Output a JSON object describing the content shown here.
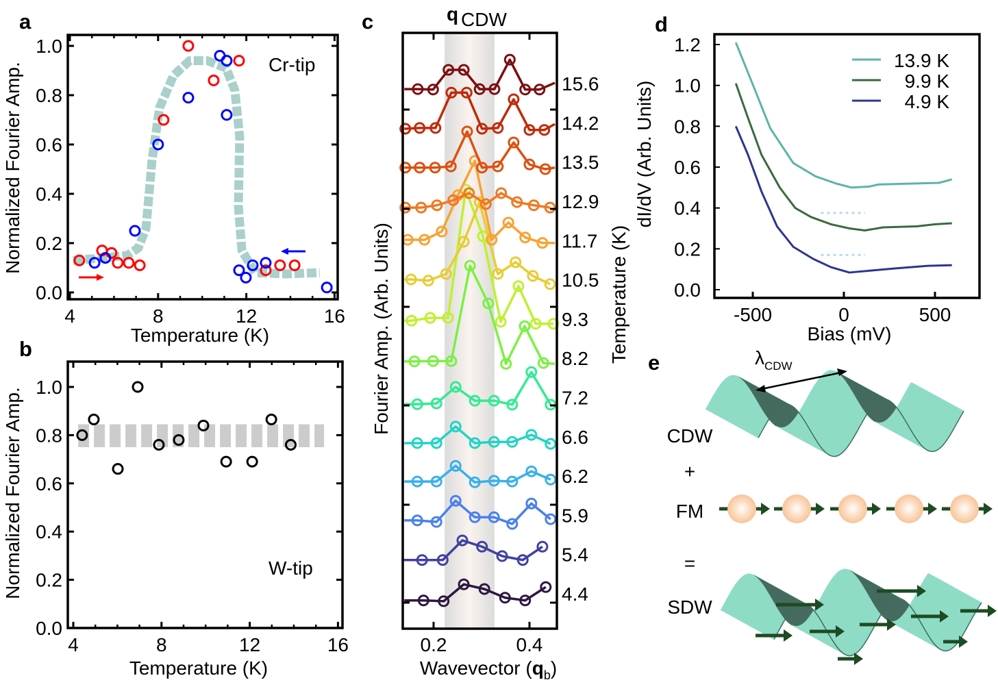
{
  "panel_labels": [
    "a",
    "b",
    "c",
    "d",
    "e"
  ],
  "chart_data": [
    {
      "panel": "a",
      "type": "scatter",
      "xlabel": "Temperature (K)",
      "ylabel": "Normalized Fourier Amp.",
      "xlim": [
        3.9,
        16.15
      ],
      "ylim": [
        -0.03,
        1.045
      ],
      "xticks": [
        4,
        8,
        12,
        16
      ],
      "xtick_labels": [
        "4",
        "8",
        "12",
        "16"
      ],
      "yticks": [
        0,
        0.2,
        0.4,
        0.6,
        0.8,
        1.0
      ],
      "ytick_labels": [
        "0.0",
        "0.2",
        "0.4",
        "0.6",
        "0.8",
        "1.0"
      ],
      "annotation": "Cr-tip",
      "grid": false,
      "series": [
        {
          "color": "#ff0000",
          "marker": "open-circle",
          "arrow": "right",
          "points": [
            [
              4.43,
              0.13
            ],
            [
              5.46,
              0.17
            ],
            [
              5.89,
              0.16
            ],
            [
              6.17,
              0.12
            ],
            [
              6.67,
              0.12
            ],
            [
              7.17,
              0.11
            ],
            [
              8.25,
              0.7
            ],
            [
              9.37,
              1.0
            ],
            [
              10.52,
              0.86
            ],
            [
              11.67,
              0.94
            ],
            [
              12.88,
              0.09
            ],
            [
              13.53,
              0.11
            ],
            [
              14.19,
              0.11
            ]
          ]
        },
        {
          "color": "#0000ff",
          "marker": "open-circle",
          "arrow": "left",
          "points": [
            [
              5.12,
              0.12
            ],
            [
              5.61,
              0.14
            ],
            [
              6.95,
              0.25
            ],
            [
              8.0,
              0.6
            ],
            [
              9.37,
              0.79
            ],
            [
              10.8,
              0.96
            ],
            [
              11.11,
              0.94
            ],
            [
              11.11,
              0.72
            ],
            [
              11.67,
              0.09
            ],
            [
              11.98,
              0.06
            ],
            [
              12.29,
              0.11
            ],
            [
              12.88,
              0.12
            ],
            [
              15.65,
              0.02
            ]
          ]
        }
      ],
      "guide_curve": {
        "color": "#a9d0ca",
        "style": "dashed",
        "points": [
          [
            4.15,
            0.13
          ],
          [
            5.5,
            0.14
          ],
          [
            6.6,
            0.15
          ],
          [
            7.1,
            0.18
          ],
          [
            7.45,
            0.26
          ],
          [
            7.73,
            0.54
          ],
          [
            8.07,
            0.75
          ],
          [
            8.7,
            0.88
          ],
          [
            9.43,
            0.94
          ],
          [
            10.24,
            0.94
          ],
          [
            11.08,
            0.91
          ],
          [
            11.48,
            0.82
          ],
          [
            11.7,
            0.63
          ],
          [
            11.64,
            0.35
          ],
          [
            11.8,
            0.17
          ],
          [
            12.4,
            0.08
          ],
          [
            13.78,
            0.075
          ],
          [
            15.33,
            0.08
          ]
        ]
      }
    },
    {
      "panel": "b",
      "type": "scatter",
      "xlabel": "Temperature (K)",
      "ylabel": "Normalized Fourier Amp.",
      "xlim": [
        3.75,
        16.2
      ],
      "ylim": [
        0,
        1.105
      ],
      "xticks": [
        4,
        8,
        12,
        16
      ],
      "xtick_labels": [
        "4",
        "8",
        "12",
        "16"
      ],
      "yticks": [
        0,
        0.2,
        0.4,
        0.6,
        0.8,
        1.0
      ],
      "ytick_labels": [
        "0.0",
        "0.2",
        "0.4",
        "0.6",
        "0.8",
        "1.0"
      ],
      "annotation": "W-tip",
      "grid": false,
      "series": [
        {
          "color": "#000000",
          "marker": "open-circle",
          "points": [
            [
              4.4,
              0.8
            ],
            [
              4.93,
              0.865
            ],
            [
              6.02,
              0.66
            ],
            [
              6.92,
              1.0
            ],
            [
              7.88,
              0.76
            ],
            [
              8.78,
              0.78
            ],
            [
              9.9,
              0.84
            ],
            [
              10.93,
              0.69
            ],
            [
              12.11,
              0.69
            ],
            [
              12.98,
              0.865
            ],
            [
              13.86,
              0.76
            ]
          ]
        }
      ],
      "band": {
        "color": "#cccccc",
        "style": "dashed",
        "x_range": [
          4.22,
          15.37
        ],
        "y_range": [
          0.75,
          0.845
        ]
      }
    },
    {
      "panel": "c",
      "type": "line",
      "title_symbol": "q",
      "title_subscript": "CDW",
      "xlabel_prefix": "Wavevector (",
      "xlabel_symbol": "q",
      "xlabel_subscript": "b",
      "xlabel_suffix": ")",
      "ylabel": "Fourier Amp. (Arb. Units)",
      "ylabel_right": "Temperature (K)",
      "xlim": [
        0.136,
        0.457
      ],
      "ylim": [
        0,
        15.2
      ],
      "xticks": [
        0.2,
        0.4
      ],
      "xtick_labels": [
        "0.2",
        "0.4"
      ],
      "grid": false,
      "highlight_band": {
        "x_range": [
          0.223,
          0.327
        ],
        "color": "#dcdcdc",
        "center_color": "#faf3ee"
      },
      "traces": [
        {
          "temperature": "4.4",
          "color": "#2d1840",
          "q": [
            0.139,
            0.179,
            0.221,
            0.263,
            0.306,
            0.349,
            0.391,
            0.434
          ],
          "amp": [
            0.72,
            0.72,
            0.7,
            1.13,
            1.01,
            0.79,
            0.72,
            1.06
          ]
        },
        {
          "temperature": "5.4",
          "color": "#3f41a0",
          "q": [
            0.136,
            0.176,
            0.219,
            0.26,
            0.301,
            0.343,
            0.386,
            0.427
          ],
          "amp": [
            1.75,
            1.75,
            1.75,
            2.25,
            2.09,
            1.85,
            1.75,
            2.09
          ]
        },
        {
          "temperature": "5.9",
          "color": "#4a80ec",
          "q": [
            0.139,
            0.166,
            0.206,
            0.246,
            0.286,
            0.326,
            0.364,
            0.404,
            0.444
          ],
          "amp": [
            2.76,
            2.76,
            2.72,
            3.26,
            2.84,
            2.84,
            2.67,
            3.19,
            2.79
          ]
        },
        {
          "temperature": "6.2",
          "color": "#38b0ea",
          "q": [
            0.139,
            0.166,
            0.206,
            0.246,
            0.286,
            0.326,
            0.364,
            0.404,
            0.444
          ],
          "amp": [
            3.75,
            3.75,
            3.75,
            4.15,
            3.73,
            3.77,
            3.75,
            4.01,
            3.8
          ]
        },
        {
          "temperature": "6.6",
          "color": "#22d4c4",
          "q": [
            0.139,
            0.166,
            0.206,
            0.246,
            0.286,
            0.326,
            0.364,
            0.404,
            0.444
          ],
          "amp": [
            4.73,
            4.73,
            4.73,
            5.15,
            4.73,
            4.76,
            4.76,
            4.94,
            4.71
          ]
        },
        {
          "temperature": "7.2",
          "color": "#34ea94",
          "q": [
            0.139,
            0.166,
            0.206,
            0.246,
            0.286,
            0.326,
            0.364,
            0.404,
            0.444
          ],
          "amp": [
            5.72,
            5.72,
            5.74,
            6.16,
            5.81,
            5.81,
            5.71,
            6.54,
            5.71
          ]
        },
        {
          "temperature": "8.2",
          "color": "#7cf044",
          "q": [
            0.139,
            0.16,
            0.199,
            0.237,
            0.276,
            0.314,
            0.351,
            0.39,
            0.429,
            0.453
          ],
          "amp": [
            6.81,
            6.81,
            6.82,
            6.82,
            9.25,
            8.29,
            6.75,
            7.71,
            6.77,
            6.75
          ]
        },
        {
          "temperature": "9.3",
          "color": "#c0f030",
          "q": [
            0.139,
            0.154,
            0.193,
            0.23,
            0.267,
            0.303,
            0.34,
            0.377,
            0.413,
            0.45
          ],
          "amp": [
            7.85,
            7.85,
            7.92,
            7.92,
            11.19,
            10.0,
            7.82,
            8.73,
            7.77,
            7.77
          ]
        },
        {
          "temperature": "10.5",
          "color": "#e8cc34",
          "q": [
            0.139,
            0.153,
            0.189,
            0.226,
            0.263,
            0.296,
            0.334,
            0.371,
            0.407,
            0.443
          ],
          "amp": [
            8.9,
            8.9,
            8.87,
            9.04,
            9.86,
            10.87,
            9.04,
            9.34,
            8.99,
            8.78
          ]
        },
        {
          "temperature": "11.7",
          "color": "#f8a232",
          "q": [
            0.139,
            0.146,
            0.181,
            0.217,
            0.251,
            0.286,
            0.321,
            0.356,
            0.391,
            0.427,
            0.453
          ],
          "amp": [
            9.91,
            9.91,
            9.91,
            10.12,
            11.05,
            11.92,
            9.91,
            10.35,
            9.97,
            9.83,
            9.83
          ]
        },
        {
          "temperature": "12.9",
          "color": "#f07822",
          "q": [
            0.139,
            0.141,
            0.174,
            0.207,
            0.241,
            0.274,
            0.309,
            0.341,
            0.374,
            0.409,
            0.443
          ],
          "amp": [
            10.73,
            10.73,
            10.73,
            10.79,
            10.92,
            11.1,
            10.82,
            11.1,
            10.87,
            10.79,
            10.73
          ]
        },
        {
          "temperature": "13.5",
          "color": "#de5010",
          "q": [
            0.139,
            0.141,
            0.171,
            0.203,
            0.236,
            0.27,
            0.301,
            0.334,
            0.367,
            0.4,
            0.433,
            0.453
          ],
          "amp": [
            11.75,
            11.75,
            11.75,
            11.75,
            11.78,
            12.67,
            11.75,
            11.78,
            12.39,
            11.83,
            11.71,
            11.75
          ]
        },
        {
          "temperature": "14.2",
          "color": "#c02a0a",
          "q": [
            0.139,
            0.141,
            0.171,
            0.204,
            0.237,
            0.269,
            0.301,
            0.334,
            0.367,
            0.4,
            0.431,
            0.453
          ],
          "amp": [
            12.74,
            12.74,
            12.76,
            12.76,
            13.66,
            13.66,
            12.74,
            12.76,
            13.49,
            12.71,
            12.71,
            12.86
          ]
        },
        {
          "temperature": "15.6",
          "color": "#7c0f10",
          "q": [
            0.139,
            0.167,
            0.199,
            0.231,
            0.263,
            0.296,
            0.327,
            0.359,
            0.391,
            0.421,
            0.453
          ],
          "amp": [
            13.75,
            13.75,
            13.74,
            14.24,
            14.24,
            13.75,
            13.75,
            14.5,
            13.74,
            13.74,
            13.91
          ]
        }
      ]
    },
    {
      "panel": "d",
      "type": "line",
      "xlabel": "Bias (mV)",
      "ylabel": "dI/dV (Arb. Units)",
      "xlim": [
        -710,
        744
      ],
      "ylim": [
        -0.04,
        1.25
      ],
      "xticks": [
        -500,
        0,
        500
      ],
      "xtick_labels": [
        "-500",
        "0",
        "500"
      ],
      "yticks": [
        0,
        0.2,
        0.4,
        0.6,
        0.8,
        1.0,
        1.2
      ],
      "ytick_labels": [
        "0.0",
        "0.2",
        "0.4",
        "0.6",
        "0.8",
        "1.0",
        "1.2"
      ],
      "legend_position": "top-right",
      "grid": false,
      "series": [
        {
          "name": "13.9 K",
          "color": "#5cb4a6",
          "x": [
            -593,
            -489,
            -404,
            -278,
            -156,
            -44,
            41,
            141,
            189,
            400,
            522,
            593
          ],
          "y": [
            1.21,
            0.98,
            0.79,
            0.62,
            0.555,
            0.52,
            0.5,
            0.505,
            0.515,
            0.52,
            0.523,
            0.54
          ]
        },
        {
          "name": "9.9 K",
          "color": "#3a6a3e",
          "x": [
            -593,
            -526,
            -452,
            -352,
            -267,
            -181,
            -70,
            30,
            115,
            215,
            400,
            500,
            593
          ],
          "y": [
            1.01,
            0.84,
            0.66,
            0.5,
            0.4,
            0.356,
            0.32,
            0.3,
            0.29,
            0.305,
            0.31,
            0.32,
            0.325
          ]
        },
        {
          "name": "4.9 K",
          "color": "#2c3590",
          "x": [
            -593,
            -526,
            -452,
            -367,
            -278,
            -167,
            -70,
            30,
            152,
            278,
            463,
            593
          ],
          "y": [
            0.8,
            0.66,
            0.48,
            0.31,
            0.21,
            0.15,
            0.11,
            0.084,
            0.094,
            0.104,
            0.117,
            0.12
          ]
        }
      ],
      "reference_lines": [
        {
          "color": "#b8d8ee",
          "style": "dotted",
          "x_range": [
            -126,
            115
          ],
          "y": 0.376
        },
        {
          "color": "#b8d8ee",
          "style": "dotted",
          "x_range": [
            -126,
            115
          ],
          "y": 0.17
        }
      ]
    }
  ],
  "schematic": {
    "lambda_symbol": "λ",
    "lambda_subscript": "CDW",
    "cdw_label": "CDW",
    "plus_sign": "+",
    "fm_label": "FM",
    "equals_sign": "=",
    "sdw_label": "SDW",
    "wave_color": "#8edcc6",
    "wave_shadow_color": "#456a5e",
    "atom_color": "#f8c8a0",
    "spin_arrow_color": "#1f4a22"
  }
}
